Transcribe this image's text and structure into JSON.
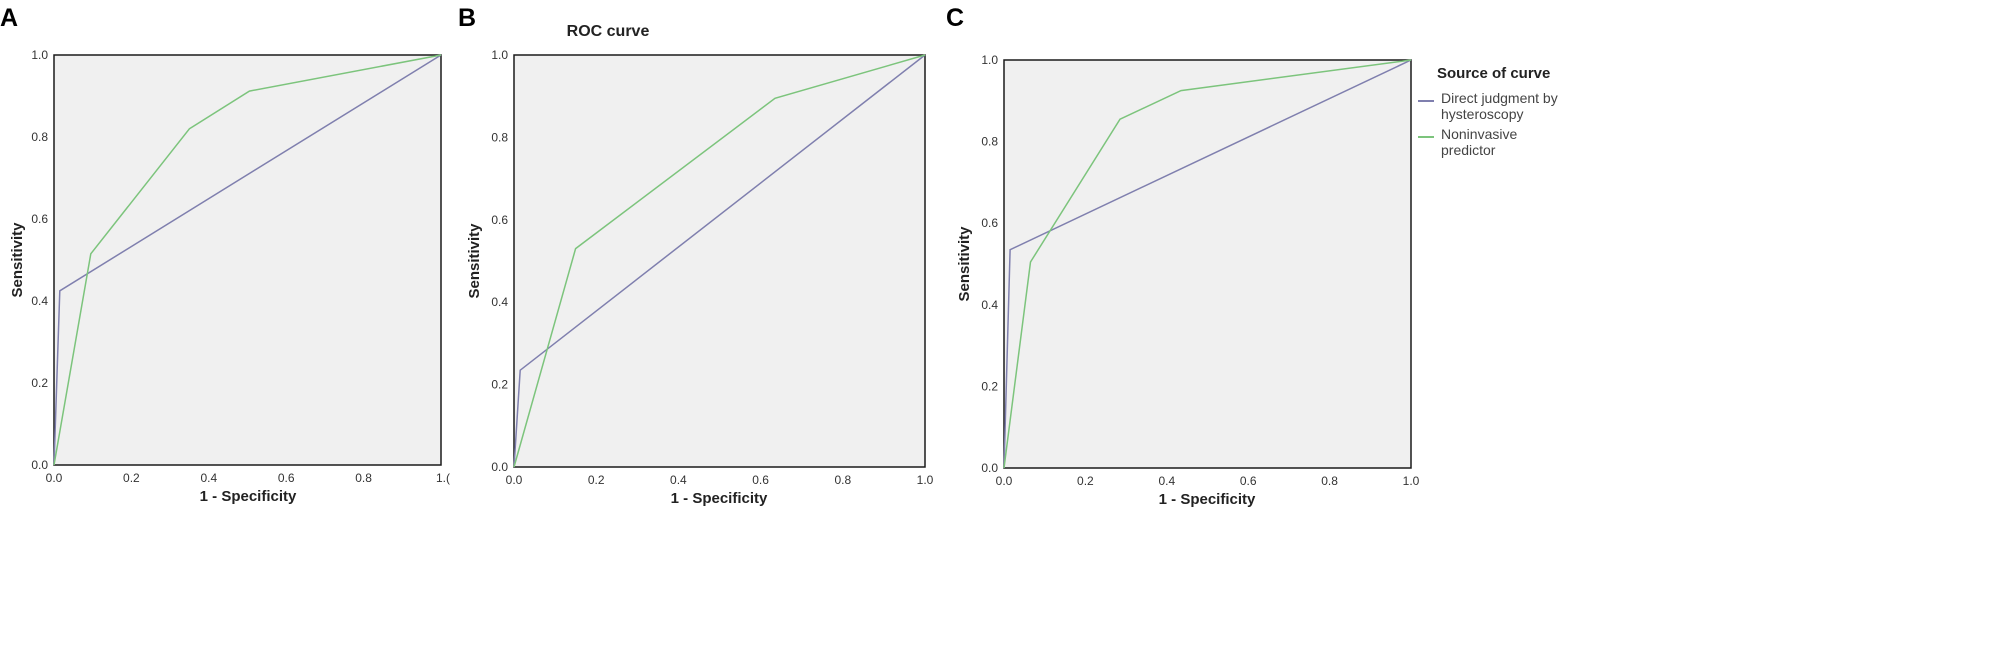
{
  "chart_data": [
    {
      "type": "line",
      "panel_label": "A",
      "title": "",
      "xlabel": "1 - Specificity",
      "ylabel": "Sensitivity",
      "xlim": [
        0,
        1
      ],
      "ylim": [
        0,
        1
      ],
      "x_tick_labels": [
        "0.0",
        "0.2",
        "0.4",
        "0.6",
        "0.8",
        "1.("
      ],
      "y_tick_labels": [
        "0.0",
        "0.2",
        "0.4",
        "0.6",
        "0.8",
        "1.0"
      ],
      "grid": false,
      "series": [
        {
          "name": "Direct judgment by hysteroscopy",
          "color": "#7f7fae",
          "points": [
            [
              0,
              0
            ],
            [
              0.015,
              0.425
            ],
            [
              1,
              1
            ]
          ]
        },
        {
          "name": "Noninvasive predictor",
          "color": "#7cc47c",
          "points": [
            [
              0,
              0
            ],
            [
              0.095,
              0.515
            ],
            [
              0.35,
              0.82
            ],
            [
              0.505,
              0.912
            ],
            [
              1,
              1
            ]
          ]
        }
      ]
    },
    {
      "type": "line",
      "panel_label": "B",
      "title": "ROC curve",
      "xlabel": "1 - Specificity",
      "ylabel": "Sensitivity",
      "xlim": [
        0,
        1
      ],
      "ylim": [
        0,
        1
      ],
      "x_tick_labels": [
        "0.0",
        "0.2",
        "0.4",
        "0.6",
        "0.8",
        "1.0"
      ],
      "y_tick_labels": [
        "0.0",
        "0.2",
        "0.4",
        "0.6",
        "0.8",
        "1.0"
      ],
      "grid": false,
      "series": [
        {
          "name": "Direct judgment by hysteroscopy",
          "color": "#7f7fae",
          "points": [
            [
              0,
              0
            ],
            [
              0.015,
              0.235
            ],
            [
              1,
              1
            ]
          ]
        },
        {
          "name": "Noninvasive predictor",
          "color": "#7cc47c",
          "points": [
            [
              0,
              0
            ],
            [
              0.15,
              0.53
            ],
            [
              0.635,
              0.895
            ],
            [
              1,
              1
            ]
          ]
        }
      ]
    },
    {
      "type": "line",
      "panel_label": "C",
      "title": "",
      "xlabel": "1 - Specificity",
      "ylabel": "Sensitivity",
      "xlim": [
        0,
        1
      ],
      "ylim": [
        0,
        1
      ],
      "x_tick_labels": [
        "0.0",
        "0.2",
        "0.4",
        "0.6",
        "0.8",
        "1.0"
      ],
      "y_tick_labels": [
        "0.0",
        "0.2",
        "0.4",
        "0.6",
        "0.8",
        "1.0"
      ],
      "grid": false,
      "series": [
        {
          "name": "Direct judgment by hysteroscopy",
          "color": "#7f7fae",
          "points": [
            [
              0,
              0
            ],
            [
              0.015,
              0.535
            ],
            [
              1,
              1
            ]
          ]
        },
        {
          "name": "Noninvasive predictor",
          "color": "#7cc47c",
          "points": [
            [
              0,
              0
            ],
            [
              0.065,
              0.505
            ],
            [
              0.285,
              0.855
            ],
            [
              0.435,
              0.925
            ],
            [
              1,
              1
            ]
          ]
        }
      ]
    }
  ],
  "legend": {
    "title": "Source of curve",
    "items": [
      {
        "line1": "Direct judgment by",
        "line2": "hysteroscopy",
        "color": "#7f7fae"
      },
      {
        "line1": "Noninvasive",
        "line2": "predictor",
        "color": "#7cc47c"
      }
    ]
  },
  "colors": {
    "plot_background": "#f0f0f0",
    "frame": "#1a1a1a",
    "reference_line": "#7f7fae",
    "predictor_line": "#7cc47c"
  }
}
